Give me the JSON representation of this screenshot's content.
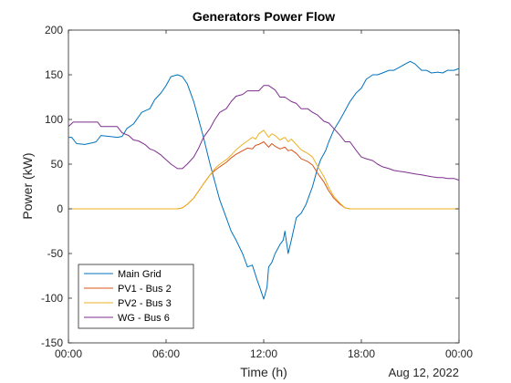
{
  "chart_data": {
    "type": "line",
    "title": "Generators Power Flow",
    "xlabel": "Time (h)",
    "ylabel": "Power (kW)",
    "date_label": "Aug 12, 2022",
    "x_tick_labels": [
      "00:00",
      "06:00",
      "12:00",
      "18:00",
      "00:00"
    ],
    "x_ticks_hours": [
      0,
      6,
      12,
      18,
      24
    ],
    "xlim_hours": [
      0,
      24
    ],
    "ylim": [
      -150,
      200
    ],
    "y_ticks": [
      -150,
      -100,
      -50,
      0,
      50,
      100,
      150,
      200
    ],
    "grid": false,
    "legend_position": "bottom-left",
    "series": [
      {
        "name": "Main Grid",
        "color": "#0072BD",
        "points": [
          [
            0,
            80
          ],
          [
            0.2,
            80
          ],
          [
            0.5,
            73
          ],
          [
            1,
            72
          ],
          [
            1.5,
            74
          ],
          [
            1.7,
            75
          ],
          [
            2,
            82
          ],
          [
            3,
            80
          ],
          [
            3.3,
            81
          ],
          [
            3.6,
            90
          ],
          [
            4,
            95
          ],
          [
            4.5,
            108
          ],
          [
            5,
            112
          ],
          [
            5.3,
            122
          ],
          [
            5.7,
            130
          ],
          [
            6,
            138
          ],
          [
            6.3,
            148
          ],
          [
            6.7,
            150
          ],
          [
            7,
            148
          ],
          [
            7.3,
            140
          ],
          [
            7.7,
            120
          ],
          [
            8,
            100
          ],
          [
            8.3,
            80
          ],
          [
            8.7,
            50
          ],
          [
            9,
            30
          ],
          [
            9.3,
            10
          ],
          [
            9.7,
            -10
          ],
          [
            10,
            -25
          ],
          [
            10.3,
            -35
          ],
          [
            10.7,
            -50
          ],
          [
            11,
            -65
          ],
          [
            11.3,
            -63
          ],
          [
            11.6,
            -80
          ],
          [
            11.8,
            -90
          ],
          [
            12,
            -101
          ],
          [
            12.2,
            -88
          ],
          [
            12.3,
            -65
          ],
          [
            12.5,
            -60
          ],
          [
            12.7,
            -50
          ],
          [
            13,
            -40
          ],
          [
            13.2,
            -35
          ],
          [
            13.3,
            -25
          ],
          [
            13.5,
            -50
          ],
          [
            13.7,
            -35
          ],
          [
            14,
            -10
          ],
          [
            14.3,
            -5
          ],
          [
            14.6,
            5
          ],
          [
            14.8,
            15
          ],
          [
            15,
            25
          ],
          [
            15.3,
            45
          ],
          [
            15.5,
            55
          ],
          [
            15.8,
            65
          ],
          [
            16,
            75
          ],
          [
            16.3,
            88
          ],
          [
            16.7,
            100
          ],
          [
            17,
            110
          ],
          [
            17.3,
            120
          ],
          [
            17.7,
            130
          ],
          [
            18,
            135
          ],
          [
            18.3,
            145
          ],
          [
            18.7,
            150
          ],
          [
            19,
            150
          ],
          [
            19.3,
            152
          ],
          [
            19.7,
            155
          ],
          [
            20,
            155
          ],
          [
            20.3,
            158
          ],
          [
            20.7,
            162
          ],
          [
            21,
            165
          ],
          [
            21.3,
            162
          ],
          [
            21.7,
            155
          ],
          [
            22,
            155
          ],
          [
            22.3,
            152
          ],
          [
            22.7,
            153
          ],
          [
            23,
            152
          ],
          [
            23.3,
            155
          ],
          [
            23.7,
            155
          ],
          [
            24,
            157
          ]
        ]
      },
      {
        "name": "PV1 - Bus 2",
        "color": "#D95319",
        "points": [
          [
            0,
            0
          ],
          [
            6.7,
            0
          ],
          [
            7,
            1
          ],
          [
            7.3,
            5
          ],
          [
            7.7,
            12
          ],
          [
            8,
            20
          ],
          [
            8.3,
            28
          ],
          [
            8.7,
            38
          ],
          [
            9,
            43
          ],
          [
            9.3,
            47
          ],
          [
            9.7,
            52
          ],
          [
            10,
            57
          ],
          [
            10.3,
            61
          ],
          [
            10.7,
            65
          ],
          [
            11,
            68
          ],
          [
            11.3,
            67
          ],
          [
            11.5,
            71
          ],
          [
            11.7,
            72
          ],
          [
            12,
            75
          ],
          [
            12.3,
            69
          ],
          [
            12.5,
            73
          ],
          [
            12.7,
            70
          ],
          [
            13,
            67
          ],
          [
            13.3,
            69
          ],
          [
            13.5,
            65
          ],
          [
            13.7,
            66
          ],
          [
            14,
            62
          ],
          [
            14.3,
            56
          ],
          [
            14.7,
            53
          ],
          [
            15,
            49
          ],
          [
            15.3,
            40
          ],
          [
            15.7,
            30
          ],
          [
            16,
            20
          ],
          [
            16.3,
            12
          ],
          [
            16.7,
            5
          ],
          [
            17,
            1
          ],
          [
            17.3,
            0
          ],
          [
            24,
            0
          ]
        ]
      },
      {
        "name": "PV2 - Bus 3",
        "color": "#EDB120",
        "points": [
          [
            0,
            0
          ],
          [
            6.7,
            0
          ],
          [
            7,
            1
          ],
          [
            7.3,
            5
          ],
          [
            7.7,
            12
          ],
          [
            8,
            20
          ],
          [
            8.3,
            28
          ],
          [
            8.7,
            38
          ],
          [
            9,
            45
          ],
          [
            9.3,
            50
          ],
          [
            9.7,
            55
          ],
          [
            10,
            60
          ],
          [
            10.3,
            66
          ],
          [
            10.7,
            72
          ],
          [
            11,
            76
          ],
          [
            11.3,
            80
          ],
          [
            11.5,
            78
          ],
          [
            11.7,
            84
          ],
          [
            12,
            88
          ],
          [
            12.3,
            80
          ],
          [
            12.5,
            84
          ],
          [
            12.7,
            82
          ],
          [
            13,
            77
          ],
          [
            13.3,
            80
          ],
          [
            13.5,
            75
          ],
          [
            13.7,
            78
          ],
          [
            14,
            72
          ],
          [
            14.3,
            66
          ],
          [
            14.7,
            62
          ],
          [
            15,
            58
          ],
          [
            15.3,
            48
          ],
          [
            15.7,
            36
          ],
          [
            16,
            24
          ],
          [
            16.3,
            14
          ],
          [
            16.7,
            6
          ],
          [
            17,
            1
          ],
          [
            17.3,
            0
          ],
          [
            24,
            0
          ]
        ]
      },
      {
        "name": "WG - Bus 6",
        "color": "#7E2F8E",
        "points": [
          [
            0,
            92
          ],
          [
            0.3,
            97
          ],
          [
            1,
            97
          ],
          [
            1.5,
            97
          ],
          [
            1.8,
            97
          ],
          [
            2,
            92
          ],
          [
            3,
            92
          ],
          [
            3.3,
            85
          ],
          [
            3.7,
            82
          ],
          [
            4,
            77
          ],
          [
            4.3,
            76
          ],
          [
            4.7,
            72
          ],
          [
            5,
            67
          ],
          [
            5.3,
            65
          ],
          [
            5.7,
            60
          ],
          [
            6,
            55
          ],
          [
            6.3,
            50
          ],
          [
            6.7,
            45
          ],
          [
            7,
            45
          ],
          [
            7.3,
            50
          ],
          [
            7.7,
            58
          ],
          [
            8,
            68
          ],
          [
            8.3,
            80
          ],
          [
            8.7,
            90
          ],
          [
            9,
            100
          ],
          [
            9.3,
            108
          ],
          [
            9.7,
            112
          ],
          [
            10,
            120
          ],
          [
            10.3,
            126
          ],
          [
            10.7,
            128
          ],
          [
            11,
            132
          ],
          [
            11.3,
            132
          ],
          [
            11.7,
            132
          ],
          [
            12,
            138
          ],
          [
            12.3,
            138
          ],
          [
            12.7,
            133
          ],
          [
            13,
            125
          ],
          [
            13.3,
            125
          ],
          [
            13.7,
            120
          ],
          [
            14,
            118
          ],
          [
            14.3,
            112
          ],
          [
            14.7,
            112
          ],
          [
            15,
            108
          ],
          [
            15.3,
            105
          ],
          [
            15.7,
            98
          ],
          [
            16,
            96
          ],
          [
            16.3,
            90
          ],
          [
            16.7,
            82
          ],
          [
            17,
            75
          ],
          [
            17.3,
            75
          ],
          [
            17.7,
            65
          ],
          [
            18,
            58
          ],
          [
            18.3,
            56
          ],
          [
            18.7,
            54
          ],
          [
            19,
            50
          ],
          [
            19.3,
            47
          ],
          [
            19.7,
            45
          ],
          [
            20,
            43
          ],
          [
            20.3,
            42
          ],
          [
            20.7,
            41
          ],
          [
            21,
            40
          ],
          [
            21.3,
            39
          ],
          [
            21.7,
            38
          ],
          [
            22,
            37
          ],
          [
            22.3,
            36
          ],
          [
            22.7,
            35
          ],
          [
            23,
            35
          ],
          [
            23.3,
            34
          ],
          [
            23.7,
            34
          ],
          [
            24,
            32
          ]
        ]
      }
    ]
  }
}
